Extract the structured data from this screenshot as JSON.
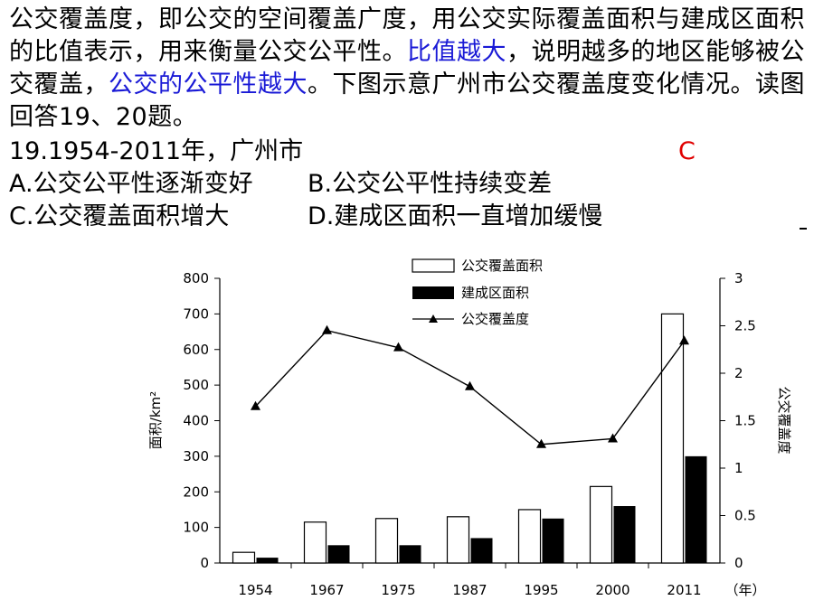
{
  "passage": {
    "p1": "公交覆盖度，即公交的空间覆盖广度，用公交实际覆盖面积与建成区面积的比值表示，用来衡量公交公平性。",
    "p2_blue": "比值越大",
    "p3": "，说明越多的地区能够被公交覆盖，",
    "p4_blue": "公交的公平性越大",
    "p5": "。下图示意广州市公交覆盖度变化情况。读图回答19、20题。"
  },
  "question": {
    "stem": "19.1954-2011年，广州市",
    "answer": "C",
    "options": {
      "A": "A.公交公平性逐渐变好",
      "B": "B.公交公平性持续变差",
      "C": "C.公交覆盖面积增大",
      "D": "D.建成区面积一直增加缓慢"
    }
  },
  "chart_data": {
    "type": "bar",
    "categories": [
      "1954",
      "1967",
      "1975",
      "1987",
      "1995",
      "2000",
      "2011"
    ],
    "x_unit": "（年）",
    "ylabel": "面积/km²",
    "y2label": "公交覆盖度",
    "ylim": [
      0,
      800
    ],
    "y_ticks": [
      "0",
      "100",
      "200",
      "300",
      "400",
      "500",
      "600",
      "700",
      "800"
    ],
    "y2lim": [
      0,
      3
    ],
    "y2_ticks": [
      "0",
      "0.5",
      "1",
      "1.5",
      "2",
      "2.5",
      "3"
    ],
    "legend_position": "top-center",
    "series": [
      {
        "name": "公交覆盖面积",
        "kind": "bar",
        "fill": "#ffffff",
        "values": [
          30,
          115,
          125,
          130,
          150,
          215,
          700
        ]
      },
      {
        "name": "建成区面积",
        "kind": "bar",
        "fill": "#000000",
        "values": [
          15,
          50,
          50,
          70,
          125,
          160,
          300
        ]
      },
      {
        "name": "公交覆盖度",
        "kind": "line",
        "axis": "right",
        "values": [
          1.65,
          2.45,
          2.27,
          1.86,
          1.25,
          1.31,
          2.34
        ]
      }
    ]
  }
}
